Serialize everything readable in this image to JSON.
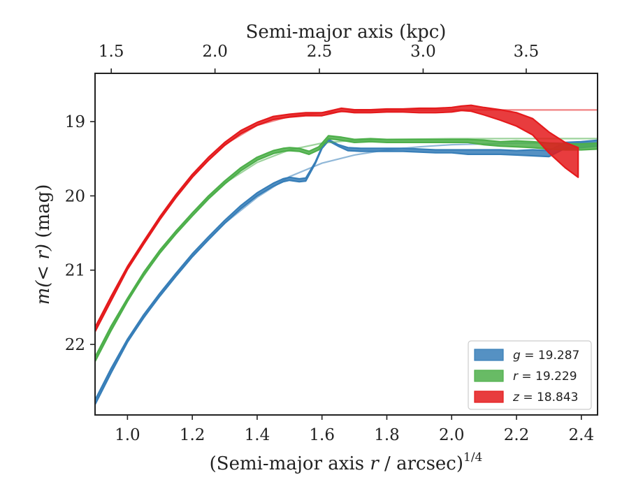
{
  "chart_data": {
    "type": "line",
    "xlabel_bottom_prefix": "(Semi-major axis ",
    "xlabel_bottom_var": "r",
    "xlabel_bottom_suffix": " / arcsec)",
    "xlabel_bottom_exp": "1/4",
    "xlabel_top": "Semi-major axis (kpc)",
    "ylabel_var_open": "m(",
    "ylabel_var_mid": "< r",
    "ylabel_var_close": ")",
    "ylabel_unit": " (mag)",
    "xlim": [
      0.9,
      2.45
    ],
    "ylim": [
      22.95,
      18.35
    ],
    "y_inverted": true,
    "x_ticks": [
      1.0,
      1.2,
      1.4,
      1.6,
      1.8,
      2.0,
      2.2,
      2.4
    ],
    "x_tick_labels": [
      "1.0",
      "1.2",
      "1.4",
      "1.6",
      "1.8",
      "2.0",
      "2.2",
      "2.4"
    ],
    "y_ticks": [
      19,
      20,
      21,
      22
    ],
    "y_tick_labels": [
      "19",
      "20",
      "21",
      "22"
    ],
    "top_ticks_kpc": [
      1.5,
      2.0,
      2.5,
      3.0,
      3.5
    ],
    "top_tick_labels": [
      "1.5",
      "2.0",
      "2.5",
      "3.0",
      "3.5"
    ],
    "top_ticks_x_position": [
      0.95,
      1.27,
      1.592,
      1.912,
      2.23
    ],
    "legend_position": "lower-right",
    "grid": false,
    "series": [
      {
        "band": "g",
        "legend_var": "g",
        "legend_value": " = 19.287",
        "color": "#377eb8",
        "data": [
          [
            0.9,
            22.78,
            0.03
          ],
          [
            0.95,
            22.35,
            0.03
          ],
          [
            1.0,
            21.95,
            0.02
          ],
          [
            1.05,
            21.62,
            0.02
          ],
          [
            1.1,
            21.33,
            0.02
          ],
          [
            1.15,
            21.06,
            0.02
          ],
          [
            1.2,
            20.8,
            0.02
          ],
          [
            1.25,
            20.57,
            0.02
          ],
          [
            1.3,
            20.35,
            0.02
          ],
          [
            1.35,
            20.15,
            0.02
          ],
          [
            1.4,
            19.98,
            0.02
          ],
          [
            1.45,
            19.85,
            0.02
          ],
          [
            1.48,
            19.79,
            0.02
          ],
          [
            1.5,
            19.77,
            0.02
          ],
          [
            1.53,
            19.79,
            0.02
          ],
          [
            1.55,
            19.78,
            0.02
          ],
          [
            1.58,
            19.55,
            0.01
          ],
          [
            1.6,
            19.35,
            0.01
          ],
          [
            1.62,
            19.25,
            0.01
          ],
          [
            1.65,
            19.32,
            0.01
          ],
          [
            1.68,
            19.37,
            0.02
          ],
          [
            1.72,
            19.38,
            0.02
          ],
          [
            1.78,
            19.38,
            0.02
          ],
          [
            1.85,
            19.38,
            0.02
          ],
          [
            1.9,
            19.39,
            0.02
          ],
          [
            1.95,
            19.4,
            0.02
          ],
          [
            2.0,
            19.4,
            0.02
          ],
          [
            2.05,
            19.41,
            0.03
          ],
          [
            2.1,
            19.41,
            0.03
          ],
          [
            2.15,
            19.41,
            0.03
          ],
          [
            2.2,
            19.42,
            0.03
          ],
          [
            2.25,
            19.42,
            0.04
          ],
          [
            2.3,
            19.43,
            0.04
          ],
          [
            2.35,
            19.32,
            0.04
          ],
          [
            2.4,
            19.31,
            0.04
          ],
          [
            2.45,
            19.29,
            0.04
          ]
        ],
        "model": [
          [
            0.9,
            22.75
          ],
          [
            1.0,
            21.96
          ],
          [
            1.1,
            21.33
          ],
          [
            1.2,
            20.81
          ],
          [
            1.3,
            20.37
          ],
          [
            1.4,
            20.02
          ],
          [
            1.5,
            19.74
          ],
          [
            1.6,
            19.56
          ],
          [
            1.7,
            19.45
          ],
          [
            1.8,
            19.38
          ],
          [
            1.9,
            19.34
          ],
          [
            2.0,
            19.31
          ],
          [
            2.1,
            19.3
          ],
          [
            2.2,
            19.29
          ],
          [
            2.3,
            19.29
          ],
          [
            2.45,
            19.287
          ]
        ]
      },
      {
        "band": "r",
        "legend_var": "r",
        "legend_value": " = 19.229",
        "color": "#4daf4a",
        "data": [
          [
            0.9,
            22.2,
            0.03
          ],
          [
            0.95,
            21.78,
            0.03
          ],
          [
            1.0,
            21.4,
            0.02
          ],
          [
            1.05,
            21.05,
            0.02
          ],
          [
            1.1,
            20.75,
            0.02
          ],
          [
            1.15,
            20.49,
            0.02
          ],
          [
            1.2,
            20.25,
            0.02
          ],
          [
            1.25,
            20.02,
            0.02
          ],
          [
            1.3,
            19.82,
            0.02
          ],
          [
            1.35,
            19.64,
            0.02
          ],
          [
            1.4,
            19.5,
            0.02
          ],
          [
            1.45,
            19.41,
            0.02
          ],
          [
            1.48,
            19.38,
            0.02
          ],
          [
            1.5,
            19.37,
            0.02
          ],
          [
            1.53,
            19.38,
            0.02
          ],
          [
            1.56,
            19.42,
            0.02
          ],
          [
            1.59,
            19.36,
            0.02
          ],
          [
            1.62,
            19.21,
            0.02
          ],
          [
            1.66,
            19.23,
            0.02
          ],
          [
            1.7,
            19.26,
            0.02
          ],
          [
            1.75,
            19.25,
            0.02
          ],
          [
            1.8,
            19.26,
            0.02
          ],
          [
            1.85,
            19.26,
            0.02
          ],
          [
            1.9,
            19.26,
            0.02
          ],
          [
            1.95,
            19.26,
            0.02
          ],
          [
            2.0,
            19.26,
            0.02
          ],
          [
            2.05,
            19.26,
            0.02
          ],
          [
            2.1,
            19.28,
            0.03
          ],
          [
            2.15,
            19.3,
            0.03
          ],
          [
            2.2,
            19.3,
            0.04
          ],
          [
            2.25,
            19.31,
            0.04
          ],
          [
            2.3,
            19.33,
            0.04
          ],
          [
            2.35,
            19.34,
            0.04
          ],
          [
            2.4,
            19.34,
            0.04
          ],
          [
            2.45,
            19.33,
            0.04
          ]
        ],
        "model": [
          [
            0.9,
            22.18
          ],
          [
            1.0,
            21.4
          ],
          [
            1.1,
            20.76
          ],
          [
            1.2,
            20.23
          ],
          [
            1.3,
            19.83
          ],
          [
            1.4,
            19.55
          ],
          [
            1.5,
            19.38
          ],
          [
            1.6,
            19.29
          ],
          [
            1.7,
            19.25
          ],
          [
            1.8,
            19.24
          ],
          [
            1.9,
            19.235
          ],
          [
            2.0,
            19.23
          ],
          [
            2.2,
            19.229
          ],
          [
            2.45,
            19.229
          ]
        ]
      },
      {
        "band": "z",
        "legend_var": "z",
        "legend_value": " = 18.843",
        "color": "#e41a1c",
        "data": [
          [
            0.9,
            21.8,
            0.03
          ],
          [
            0.95,
            21.38,
            0.03
          ],
          [
            1.0,
            20.97,
            0.02
          ],
          [
            1.05,
            20.63,
            0.02
          ],
          [
            1.1,
            20.3,
            0.02
          ],
          [
            1.15,
            20.0,
            0.02
          ],
          [
            1.2,
            19.73,
            0.02
          ],
          [
            1.25,
            19.5,
            0.02
          ],
          [
            1.3,
            19.3,
            0.02
          ],
          [
            1.35,
            19.14,
            0.02
          ],
          [
            1.4,
            19.03,
            0.02
          ],
          [
            1.45,
            18.95,
            0.02
          ],
          [
            1.5,
            18.92,
            0.02
          ],
          [
            1.55,
            18.9,
            0.02
          ],
          [
            1.6,
            18.9,
            0.02
          ],
          [
            1.63,
            18.87,
            0.02
          ],
          [
            1.66,
            18.84,
            0.02
          ],
          [
            1.7,
            18.86,
            0.02
          ],
          [
            1.75,
            18.86,
            0.02
          ],
          [
            1.8,
            18.85,
            0.02
          ],
          [
            1.85,
            18.85,
            0.02
          ],
          [
            1.9,
            18.85,
            0.03
          ],
          [
            1.95,
            18.85,
            0.03
          ],
          [
            2.0,
            18.84,
            0.03
          ],
          [
            2.03,
            18.82,
            0.03
          ],
          [
            2.06,
            18.82,
            0.04
          ],
          [
            2.1,
            18.86,
            0.05
          ],
          [
            2.15,
            18.91,
            0.07
          ],
          [
            2.2,
            18.97,
            0.09
          ],
          [
            2.25,
            19.07,
            0.11
          ],
          [
            2.3,
            19.28,
            0.14
          ],
          [
            2.35,
            19.45,
            0.17
          ],
          [
            2.39,
            19.55,
            0.2
          ]
        ],
        "model": [
          [
            0.9,
            21.78
          ],
          [
            1.0,
            20.96
          ],
          [
            1.1,
            20.29
          ],
          [
            1.2,
            19.73
          ],
          [
            1.3,
            19.31
          ],
          [
            1.4,
            19.05
          ],
          [
            1.5,
            18.93
          ],
          [
            1.6,
            18.88
          ],
          [
            1.7,
            18.86
          ],
          [
            1.8,
            18.85
          ],
          [
            1.9,
            18.845
          ],
          [
            2.0,
            18.843
          ],
          [
            2.2,
            18.843
          ],
          [
            2.45,
            18.843
          ]
        ]
      }
    ]
  }
}
